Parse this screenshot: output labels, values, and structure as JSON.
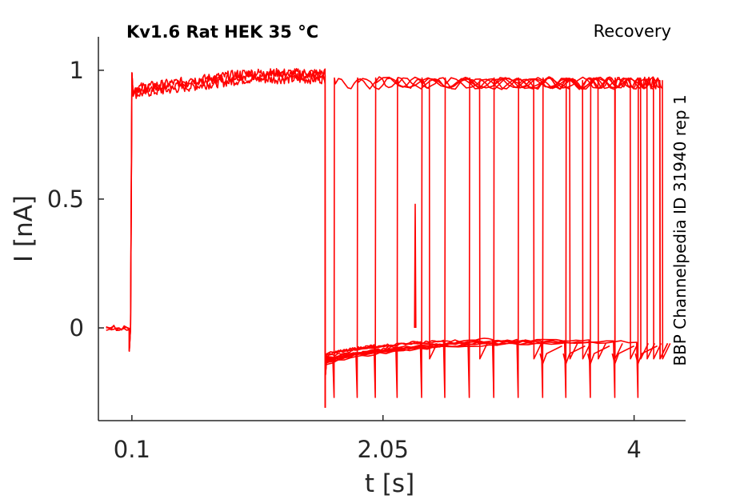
{
  "chart_data": {
    "type": "line",
    "title": "Kv1.6  Rat  HEK  35 °C",
    "protocol": "Recovery",
    "side_note": "BBP Channelpedia ID 31940 rep 1",
    "xlabel": "t [s]",
    "ylabel": "I [nA]",
    "xlim": [
      -0.16,
      4.4
    ],
    "ylim": [
      -0.36,
      1.13
    ],
    "xticks": [
      0.1,
      2.05,
      4
    ],
    "xtick_labels": [
      "0.1",
      "2.05",
      "4"
    ],
    "yticks": [
      0,
      0.5,
      1
    ],
    "ytick_labels": [
      "0",
      "0.5",
      "1"
    ],
    "grid": false,
    "color": "#ff0000",
    "prepulse": {
      "baseline_start": -0.1,
      "step_on": 0.1,
      "step_off": 1.6,
      "baseline_level": 0.0,
      "peak_level": 0.99,
      "plateau_start": 0.92,
      "plateau_end": 0.98
    },
    "recovery_sweeps": [
      {
        "t_on": 1.67,
        "t_off": 2.41,
        "tail_end": -0.01
      },
      {
        "t_on": 1.85,
        "t_off": 2.8,
        "tail_end": 0.0
      },
      {
        "t_on": 1.99,
        "t_off": 3.5,
        "tail_end": -0.01
      },
      {
        "t_on": 2.16,
        "t_off": 3.22,
        "tail_end": -0.02
      },
      {
        "t_on": 2.35,
        "t_off": 3.6,
        "tail_end": -0.02
      },
      {
        "t_on": 2.53,
        "t_off": 3.72,
        "tail_end": -0.02
      },
      {
        "t_on": 2.72,
        "t_off": 3.85,
        "tail_end": -0.03
      },
      {
        "t_on": 2.91,
        "t_off": 4.1,
        "tail_end": -0.03
      },
      {
        "t_on": 3.1,
        "t_off": 3.97,
        "tail_end": -0.03
      },
      {
        "t_on": 3.29,
        "t_off": 4.05,
        "tail_end": -0.04
      },
      {
        "t_on": 3.47,
        "t_off": 4.15,
        "tail_end": -0.04
      },
      {
        "t_on": 3.66,
        "t_off": 4.2,
        "tail_end": -0.04
      },
      {
        "t_on": 3.85,
        "t_off": 4.22,
        "tail_end": -0.05
      },
      {
        "t_on": 4.03,
        "t_off": 4.2,
        "tail_end": -0.05
      }
    ],
    "late_tail_drops": [
      3.29,
      3.47,
      3.66,
      3.85,
      4.03
    ],
    "spike": {
      "t": 2.3,
      "peak": 0.48
    }
  }
}
